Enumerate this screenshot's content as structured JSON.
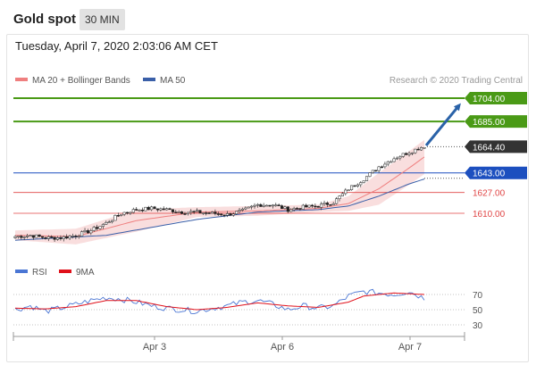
{
  "header": {
    "title": "Gold spot",
    "timeframe": "30 MIN"
  },
  "datetime": "Tuesday, April 7, 2020 2:03:06 AM CET",
  "legend": {
    "ma20": "MA 20 + Bollinger Bands",
    "ma50": "MA 50",
    "copyright": "Research © 2020 Trading Central",
    "rsi": "RSI",
    "ma9": "9MA"
  },
  "colors": {
    "ma20": "#ef7f7f",
    "ma50": "#3a5fa8",
    "resistance": "#4a9a16",
    "support_blue": "#1c4fbf",
    "support_red": "#e04545",
    "current": "#333333",
    "arrow": "#2a62a8",
    "rsi": "#4a76d4",
    "rsi_ma": "#e0101a",
    "band_fill": "#f9dede"
  },
  "chart_data": [
    {
      "type": "candlestick",
      "title": "Gold spot",
      "x_ticks": [
        "Apr 3",
        "Apr 6",
        "Apr 7"
      ],
      "ylim": [
        1588,
        1720
      ],
      "levels": [
        {
          "value": 1704.0,
          "label": "1704.00",
          "kind": "resistance"
        },
        {
          "value": 1685.0,
          "label": "1685.00",
          "kind": "resistance"
        },
        {
          "value": 1664.4,
          "label": "1664.40",
          "kind": "current"
        },
        {
          "value": 1643.0,
          "label": "1643.00",
          "kind": "support"
        },
        {
          "value": 1627.0,
          "label": "1627.00",
          "kind": "support-minor"
        },
        {
          "value": 1610.0,
          "label": "1610.00",
          "kind": "support-minor"
        }
      ],
      "close_waypoints": [
        [
          0,
          1591
        ],
        [
          5,
          1592
        ],
        [
          10,
          1590
        ],
        [
          15,
          1590
        ],
        [
          20,
          1592
        ],
        [
          25,
          1596
        ],
        [
          30,
          1602
        ],
        [
          35,
          1610
        ],
        [
          40,
          1613
        ],
        [
          45,
          1614
        ],
        [
          50,
          1613
        ],
        [
          55,
          1611
        ],
        [
          60,
          1611
        ],
        [
          65,
          1610
        ],
        [
          70,
          1609
        ],
        [
          75,
          1612
        ],
        [
          80,
          1617
        ],
        [
          85,
          1617
        ],
        [
          90,
          1613
        ],
        [
          95,
          1615
        ],
        [
          100,
          1616
        ],
        [
          105,
          1619
        ],
        [
          110,
          1630
        ],
        [
          115,
          1638
        ],
        [
          120,
          1648
        ],
        [
          125,
          1655
        ],
        [
          130,
          1660
        ],
        [
          135,
          1665
        ]
      ],
      "ma20_waypoints": [
        [
          0,
          1592
        ],
        [
          20,
          1591
        ],
        [
          40,
          1604
        ],
        [
          60,
          1611
        ],
        [
          80,
          1612
        ],
        [
          100,
          1614
        ],
        [
          110,
          1618
        ],
        [
          120,
          1630
        ],
        [
          130,
          1647
        ],
        [
          135,
          1656
        ]
      ],
      "ma50_waypoints": [
        [
          0,
          1588
        ],
        [
          30,
          1592
        ],
        [
          60,
          1605
        ],
        [
          80,
          1611
        ],
        [
          100,
          1613
        ],
        [
          110,
          1616
        ],
        [
          120,
          1624
        ],
        [
          130,
          1634
        ],
        [
          135,
          1638
        ]
      ],
      "bb_half_width_waypoints": [
        [
          0,
          4
        ],
        [
          25,
          7
        ],
        [
          40,
          9
        ],
        [
          60,
          4
        ],
        [
          80,
          4
        ],
        [
          100,
          3
        ],
        [
          110,
          6
        ],
        [
          120,
          13
        ],
        [
          135,
          14
        ]
      ],
      "forecast_target": 1704.0
    },
    {
      "type": "line",
      "title": "RSI",
      "ylim": [
        20,
        80
      ],
      "y_ticks": [
        70,
        50,
        30
      ],
      "series": [
        {
          "name": "RSI",
          "waypoints": [
            [
              0,
              50
            ],
            [
              5,
              55
            ],
            [
              10,
              48
            ],
            [
              15,
              52
            ],
            [
              20,
              57
            ],
            [
              25,
              62
            ],
            [
              30,
              66
            ],
            [
              35,
              64
            ],
            [
              40,
              60
            ],
            [
              45,
              55
            ],
            [
              50,
              52
            ],
            [
              55,
              50
            ],
            [
              60,
              48
            ],
            [
              65,
              52
            ],
            [
              70,
              55
            ],
            [
              75,
              60
            ],
            [
              80,
              62
            ],
            [
              85,
              57
            ],
            [
              90,
              50
            ],
            [
              95,
              55
            ],
            [
              100,
              52
            ],
            [
              105,
              55
            ],
            [
              110,
              68
            ],
            [
              115,
              74
            ],
            [
              120,
              72
            ],
            [
              125,
              70
            ],
            [
              130,
              74
            ],
            [
              135,
              65
            ]
          ]
        },
        {
          "name": "9MA",
          "waypoints": [
            [
              0,
              52
            ],
            [
              10,
              51
            ],
            [
              20,
              54
            ],
            [
              30,
              62
            ],
            [
              40,
              62
            ],
            [
              50,
              54
            ],
            [
              60,
              50
            ],
            [
              70,
              53
            ],
            [
              80,
              59
            ],
            [
              90,
              55
            ],
            [
              100,
              53
            ],
            [
              110,
              60
            ],
            [
              115,
              68
            ],
            [
              125,
              72
            ],
            [
              135,
              70
            ]
          ]
        }
      ]
    }
  ]
}
